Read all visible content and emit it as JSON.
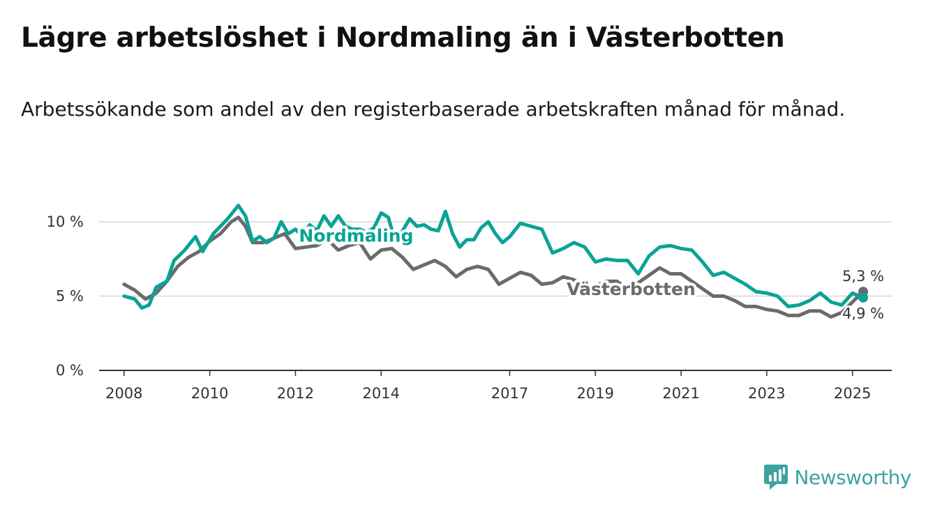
{
  "title": "Lägre arbetslöshet i Nordmaling än i Västerbotten",
  "subtitle": "Arbetssökande som andel av den registerbaserade arbetskraften månad för månad.",
  "brand": {
    "name": "Newsworthy",
    "icon": "newsworthy-logo-icon",
    "color": "#3da3a0"
  },
  "chart_data": {
    "type": "line",
    "x_ticks": [
      "2008",
      "2010",
      "2012",
      "2014",
      "2017",
      "2019",
      "2021",
      "2023",
      "2025"
    ],
    "y_ticks": [
      "0 %",
      "5 %",
      "10 %"
    ],
    "ylim": [
      0,
      10
    ],
    "xlim": [
      "2007-06",
      "2025-12"
    ],
    "grid": true,
    "series": [
      {
        "name": "Nordmaling",
        "color": "#0aa395",
        "end_label": "4,9 %",
        "points": [
          [
            "2008-01",
            5.0
          ],
          [
            "2008-04",
            4.8
          ],
          [
            "2008-06",
            4.2
          ],
          [
            "2008-08",
            4.4
          ],
          [
            "2008-10",
            5.6
          ],
          [
            "2009-01",
            6.0
          ],
          [
            "2009-03",
            7.4
          ],
          [
            "2009-06",
            8.1
          ],
          [
            "2009-09",
            9.0
          ],
          [
            "2009-11",
            8.0
          ],
          [
            "2010-02",
            9.2
          ],
          [
            "2010-06",
            10.2
          ],
          [
            "2010-09",
            11.1
          ],
          [
            "2010-11",
            10.4
          ],
          [
            "2011-01",
            8.7
          ],
          [
            "2011-03",
            9.0
          ],
          [
            "2011-05",
            8.6
          ],
          [
            "2011-07",
            8.9
          ],
          [
            "2011-09",
            10.0
          ],
          [
            "2011-11",
            9.2
          ],
          [
            "2012-01",
            9.5
          ],
          [
            "2012-03",
            9.0
          ],
          [
            "2012-05",
            9.8
          ],
          [
            "2012-07",
            9.4
          ],
          [
            "2012-09",
            10.4
          ],
          [
            "2012-11",
            9.7
          ],
          [
            "2013-01",
            10.4
          ],
          [
            "2013-03",
            9.7
          ],
          [
            "2013-05",
            9.5
          ],
          [
            "2013-07",
            9.5
          ],
          [
            "2013-09",
            9.3
          ],
          [
            "2013-11",
            9.6
          ],
          [
            "2014-01",
            10.6
          ],
          [
            "2014-03",
            10.3
          ],
          [
            "2014-05",
            8.6
          ],
          [
            "2014-07",
            9.4
          ],
          [
            "2014-09",
            10.2
          ],
          [
            "2014-11",
            9.7
          ],
          [
            "2015-01",
            9.8
          ],
          [
            "2015-03",
            9.5
          ],
          [
            "2015-05",
            9.4
          ],
          [
            "2015-07",
            10.7
          ],
          [
            "2015-09",
            9.2
          ],
          [
            "2015-11",
            8.3
          ],
          [
            "2016-01",
            8.8
          ],
          [
            "2016-03",
            8.8
          ],
          [
            "2016-05",
            9.6
          ],
          [
            "2016-07",
            10.0
          ],
          [
            "2016-09",
            9.2
          ],
          [
            "2016-11",
            8.6
          ],
          [
            "2017-01",
            9.0
          ],
          [
            "2017-04",
            9.9
          ],
          [
            "2017-07",
            9.7
          ],
          [
            "2017-10",
            9.5
          ],
          [
            "2018-01",
            7.9
          ],
          [
            "2018-04",
            8.2
          ],
          [
            "2018-07",
            8.6
          ],
          [
            "2018-10",
            8.3
          ],
          [
            "2019-01",
            7.3
          ],
          [
            "2019-04",
            7.5
          ],
          [
            "2019-07",
            7.4
          ],
          [
            "2019-10",
            7.4
          ],
          [
            "2020-01",
            6.5
          ],
          [
            "2020-04",
            7.7
          ],
          [
            "2020-07",
            8.3
          ],
          [
            "2020-10",
            8.4
          ],
          [
            "2021-01",
            8.2
          ],
          [
            "2021-04",
            8.1
          ],
          [
            "2021-07",
            7.3
          ],
          [
            "2021-10",
            6.4
          ],
          [
            "2022-01",
            6.6
          ],
          [
            "2022-04",
            6.2
          ],
          [
            "2022-07",
            5.8
          ],
          [
            "2022-10",
            5.3
          ],
          [
            "2023-01",
            5.2
          ],
          [
            "2023-04",
            5.0
          ],
          [
            "2023-07",
            4.3
          ],
          [
            "2023-10",
            4.4
          ],
          [
            "2024-01",
            4.7
          ],
          [
            "2024-04",
            5.2
          ],
          [
            "2024-07",
            4.6
          ],
          [
            "2024-10",
            4.4
          ],
          [
            "2025-01",
            5.2
          ],
          [
            "2025-04",
            4.9
          ]
        ]
      },
      {
        "name": "Västerbotten",
        "color": "#6b6b6b",
        "end_label": "5,3 %",
        "points": [
          [
            "2008-01",
            5.8
          ],
          [
            "2008-04",
            5.4
          ],
          [
            "2008-07",
            4.8
          ],
          [
            "2008-10",
            5.2
          ],
          [
            "2009-01",
            6.0
          ],
          [
            "2009-04",
            7.0
          ],
          [
            "2009-07",
            7.6
          ],
          [
            "2009-10",
            8.0
          ],
          [
            "2010-01",
            8.7
          ],
          [
            "2010-04",
            9.2
          ],
          [
            "2010-07",
            10.0
          ],
          [
            "2010-09",
            10.3
          ],
          [
            "2010-11",
            9.7
          ],
          [
            "2011-01",
            8.6
          ],
          [
            "2011-04",
            8.6
          ],
          [
            "2011-07",
            8.9
          ],
          [
            "2011-10",
            9.2
          ],
          [
            "2012-01",
            8.2
          ],
          [
            "2012-04",
            8.3
          ],
          [
            "2012-07",
            8.4
          ],
          [
            "2012-10",
            8.8
          ],
          [
            "2013-01",
            8.1
          ],
          [
            "2013-04",
            8.4
          ],
          [
            "2013-07",
            8.6
          ],
          [
            "2013-10",
            7.5
          ],
          [
            "2014-01",
            8.1
          ],
          [
            "2014-04",
            8.2
          ],
          [
            "2014-07",
            7.6
          ],
          [
            "2014-10",
            6.8
          ],
          [
            "2015-01",
            7.1
          ],
          [
            "2015-04",
            7.4
          ],
          [
            "2015-07",
            7.0
          ],
          [
            "2015-10",
            6.3
          ],
          [
            "2016-01",
            6.8
          ],
          [
            "2016-04",
            7.0
          ],
          [
            "2016-07",
            6.8
          ],
          [
            "2016-10",
            5.8
          ],
          [
            "2017-01",
            6.2
          ],
          [
            "2017-04",
            6.6
          ],
          [
            "2017-07",
            6.4
          ],
          [
            "2017-10",
            5.8
          ],
          [
            "2018-01",
            5.9
          ],
          [
            "2018-04",
            6.3
          ],
          [
            "2018-07",
            6.1
          ],
          [
            "2018-10",
            5.6
          ],
          [
            "2019-01",
            5.7
          ],
          [
            "2019-04",
            6.0
          ],
          [
            "2019-07",
            6.0
          ],
          [
            "2019-10",
            5.5
          ],
          [
            "2020-01",
            5.9
          ],
          [
            "2020-04",
            6.4
          ],
          [
            "2020-07",
            6.9
          ],
          [
            "2020-10",
            6.5
          ],
          [
            "2021-01",
            6.5
          ],
          [
            "2021-04",
            6.0
          ],
          [
            "2021-07",
            5.5
          ],
          [
            "2021-10",
            5.0
          ],
          [
            "2022-01",
            5.0
          ],
          [
            "2022-04",
            4.7
          ],
          [
            "2022-07",
            4.3
          ],
          [
            "2022-10",
            4.3
          ],
          [
            "2023-01",
            4.1
          ],
          [
            "2023-04",
            4.0
          ],
          [
            "2023-07",
            3.7
          ],
          [
            "2023-10",
            3.7
          ],
          [
            "2024-01",
            4.0
          ],
          [
            "2024-04",
            4.0
          ],
          [
            "2024-07",
            3.6
          ],
          [
            "2024-10",
            3.9
          ],
          [
            "2025-01",
            4.6
          ],
          [
            "2025-04",
            5.3
          ]
        ]
      }
    ]
  }
}
